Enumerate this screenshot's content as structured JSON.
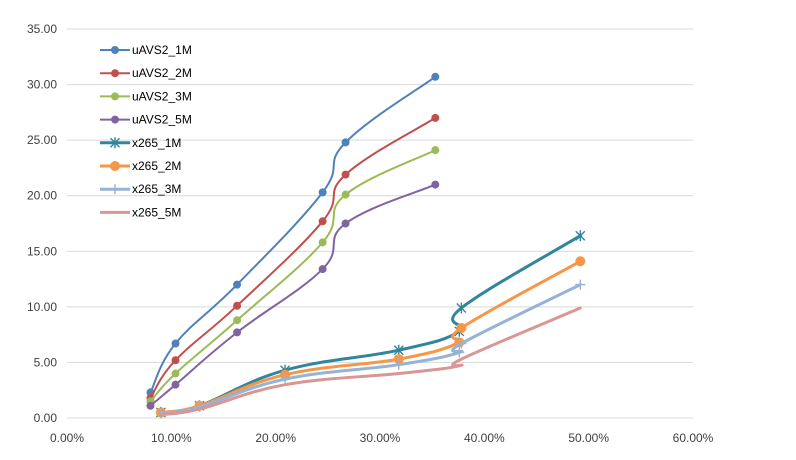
{
  "chart_data": {
    "type": "line",
    "x_ticks": [
      "0.00%",
      "10.00%",
      "20.00%",
      "30.00%",
      "40.00%",
      "50.00%",
      "60.00%"
    ],
    "y_ticks": [
      "0.00",
      "5.00",
      "10.00",
      "15.00",
      "20.00",
      "25.00",
      "30.00",
      "35.00"
    ],
    "xlim": [
      0,
      0.6
    ],
    "ylim": [
      0,
      35
    ],
    "grid": "horizontal",
    "legend_position": "top-left",
    "series": [
      {
        "name": "uAVS2_1M",
        "color": "#4F81BD",
        "marker": "circle",
        "width": 2,
        "x": [
          0.08,
          0.104,
          0.163,
          0.245,
          0.267,
          0.353
        ],
        "y": [
          2.3,
          6.7,
          12.0,
          20.3,
          24.8,
          30.7
        ]
      },
      {
        "name": "uAVS2_2M",
        "color": "#C0504D",
        "marker": "circle",
        "width": 2,
        "x": [
          0.08,
          0.104,
          0.163,
          0.245,
          0.267,
          0.353
        ],
        "y": [
          1.8,
          5.2,
          10.1,
          17.7,
          21.9,
          27.0
        ]
      },
      {
        "name": "uAVS2_3M",
        "color": "#9BBB59",
        "marker": "circle",
        "width": 2,
        "x": [
          0.08,
          0.104,
          0.163,
          0.245,
          0.267,
          0.353
        ],
        "y": [
          1.5,
          4.0,
          8.8,
          15.8,
          20.1,
          24.1
        ]
      },
      {
        "name": "uAVS2_5M",
        "color": "#8064A2",
        "marker": "circle",
        "width": 2,
        "x": [
          0.08,
          0.104,
          0.163,
          0.245,
          0.267,
          0.353
        ],
        "y": [
          1.1,
          3.0,
          7.7,
          13.4,
          17.5,
          21.0
        ]
      },
      {
        "name": "x265_1M",
        "color": "#31859C",
        "marker": "star",
        "width": 3,
        "x": [
          0.09,
          0.127,
          0.209,
          0.318,
          0.376,
          0.378,
          0.492
        ],
        "y": [
          0.5,
          1.1,
          4.3,
          6.1,
          7.8,
          9.9,
          16.4
        ]
      },
      {
        "name": "x265_2M",
        "color": "#F79646",
        "marker": "circle-large",
        "width": 3,
        "x": [
          0.09,
          0.127,
          0.209,
          0.318,
          0.376,
          0.378,
          0.492
        ],
        "y": [
          0.5,
          1.1,
          3.9,
          5.3,
          6.8,
          8.1,
          14.1
        ]
      },
      {
        "name": "x265_3M",
        "color": "#95B3D7",
        "marker": "plus",
        "width": 3,
        "x": [
          0.09,
          0.127,
          0.209,
          0.318,
          0.376,
          0.378,
          0.492
        ],
        "y": [
          0.4,
          1.0,
          3.5,
          4.8,
          5.9,
          6.7,
          12.0
        ]
      },
      {
        "name": "x265_5M",
        "color": "#D99694",
        "marker": "none",
        "width": 3,
        "x": [
          0.09,
          0.127,
          0.209,
          0.318,
          0.376,
          0.378,
          0.492
        ],
        "y": [
          0.3,
          0.8,
          3.0,
          4.0,
          4.7,
          5.3,
          9.9
        ]
      }
    ]
  }
}
